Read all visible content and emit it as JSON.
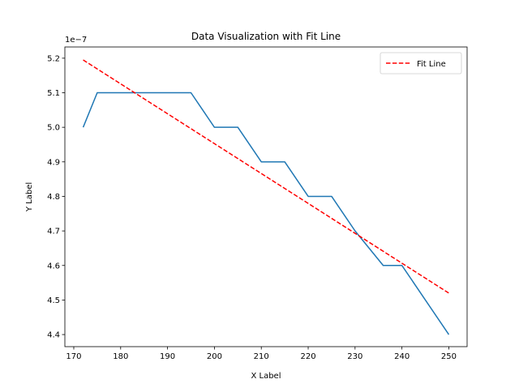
{
  "chart_data": {
    "type": "line",
    "title": "Data Visualization with Fit Line",
    "xlabel": "X Label",
    "ylabel": "Y Label",
    "y_offset_text": "1e−7",
    "xlim": [
      168.1,
      253.9
    ],
    "ylim": [
      4.365,
      5.2325
    ],
    "x_ticks": [
      170,
      180,
      190,
      200,
      210,
      220,
      230,
      240,
      250
    ],
    "x_tick_labels": [
      "170",
      "180",
      "190",
      "200",
      "210",
      "220",
      "230",
      "240",
      "250"
    ],
    "y_ticks": [
      4.4,
      4.5,
      4.6,
      4.7,
      4.8,
      4.9,
      5.0,
      5.1,
      5.2
    ],
    "y_tick_labels": [
      "4.4",
      "4.5",
      "4.6",
      "4.7",
      "4.8",
      "4.9",
      "5.0",
      "5.1",
      "5.2"
    ],
    "grid": false,
    "legend_position": "upper right",
    "series": [
      {
        "color": "#1f77b4",
        "style": "solid",
        "x": [
          172,
          175,
          180,
          185,
          190,
          195,
          200,
          205,
          210,
          215,
          220,
          225,
          228,
          230,
          236,
          240,
          245,
          250
        ],
        "y": [
          5.0,
          5.1,
          5.1,
          5.1,
          5.1,
          5.1,
          5.0,
          5.0,
          4.9,
          4.9,
          4.8,
          4.8,
          4.74,
          4.7,
          4.6,
          4.6,
          4.5,
          4.4
        ]
      },
      {
        "name": "Fit Line",
        "color": "#ff0000",
        "style": "dashed",
        "x": [
          172,
          250
        ],
        "y": [
          5.195,
          4.52
        ]
      }
    ]
  }
}
